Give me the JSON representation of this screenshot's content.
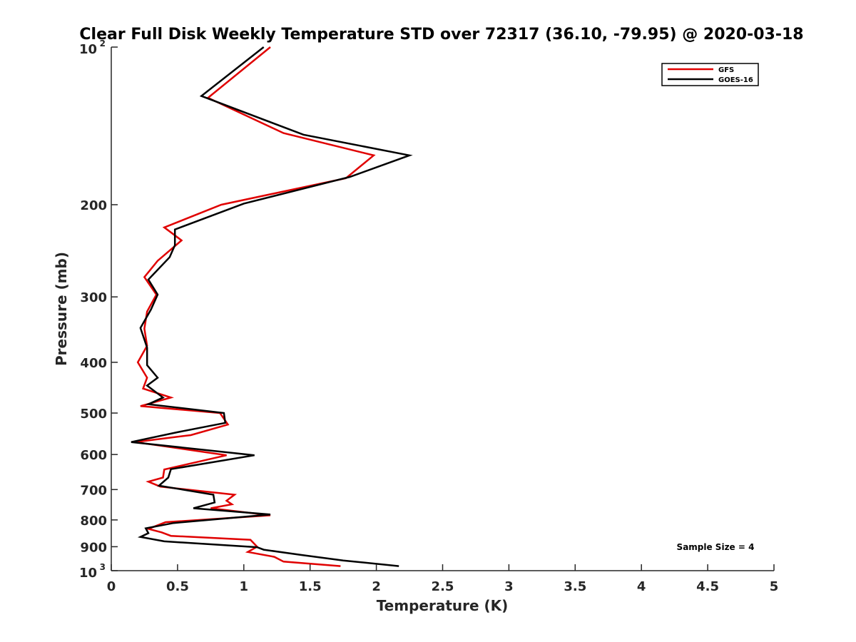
{
  "chart_data": {
    "type": "line",
    "title": "Clear Full Disk Weekly Temperature STD over 72317 (36.10, -79.95) @ 2020-03-18",
    "xlabel": "Temperature (K)",
    "ylabel": "Pressure (mb)",
    "xlim": [
      0,
      5
    ],
    "ylim": [
      100,
      1000
    ],
    "y_scale": "log",
    "y_reversed": true,
    "grid": false,
    "x_ticks": [
      "0",
      "0.5",
      "1",
      "1.5",
      "2",
      "2.5",
      "3",
      "3.5",
      "4",
      "4.5",
      "5"
    ],
    "y_ticks": [
      {
        "value": 100,
        "base": "10",
        "exp": "2"
      },
      {
        "value": 200,
        "label": "200"
      },
      {
        "value": 300,
        "label": "300"
      },
      {
        "value": 400,
        "label": "400"
      },
      {
        "value": 500,
        "label": "500"
      },
      {
        "value": 600,
        "label": "600"
      },
      {
        "value": 700,
        "label": "700"
      },
      {
        "value": 800,
        "label": "800"
      },
      {
        "value": 900,
        "label": "900"
      },
      {
        "value": 1000,
        "base": "10",
        "exp": "3"
      }
    ],
    "legend_position": "top-right",
    "annotation": "Sample Size = 4",
    "series": [
      {
        "name": "GFS",
        "color": "#e00000",
        "points": [
          [
            1.2,
            100
          ],
          [
            0.73,
            125
          ],
          [
            1.3,
            146
          ],
          [
            1.98,
            161
          ],
          [
            1.77,
            178
          ],
          [
            0.83,
            200
          ],
          [
            0.4,
            221
          ],
          [
            0.53,
            234
          ],
          [
            0.35,
            256
          ],
          [
            0.25,
            275
          ],
          [
            0.34,
            297
          ],
          [
            0.27,
            320
          ],
          [
            0.25,
            345
          ],
          [
            0.27,
            372
          ],
          [
            0.2,
            400
          ],
          [
            0.27,
            428
          ],
          [
            0.24,
            449
          ],
          [
            0.45,
            467
          ],
          [
            0.22,
            485
          ],
          [
            0.82,
            500
          ],
          [
            0.88,
            526
          ],
          [
            0.6,
            551
          ],
          [
            0.18,
            568
          ],
          [
            0.87,
            602
          ],
          [
            0.4,
            641
          ],
          [
            0.39,
            664
          ],
          [
            0.28,
            676
          ],
          [
            0.37,
            691
          ],
          [
            0.93,
            716
          ],
          [
            0.87,
            735
          ],
          [
            0.91,
            747
          ],
          [
            0.75,
            760
          ],
          [
            1.2,
            784
          ],
          [
            0.41,
            808
          ],
          [
            0.28,
            832
          ],
          [
            0.38,
            845
          ],
          [
            0.45,
            858
          ],
          [
            1.05,
            873
          ],
          [
            1.1,
            900
          ],
          [
            1.03,
            921
          ],
          [
            1.23,
            941
          ],
          [
            1.3,
            961
          ],
          [
            1.73,
            980
          ]
        ]
      },
      {
        "name": "GOES-16",
        "color": "#000000",
        "points": [
          [
            1.15,
            100
          ],
          [
            0.68,
            124
          ],
          [
            1.45,
            147
          ],
          [
            2.25,
            161
          ],
          [
            1.8,
            177
          ],
          [
            1.0,
            199
          ],
          [
            0.48,
            223
          ],
          [
            0.48,
            239
          ],
          [
            0.44,
            252
          ],
          [
            0.28,
            278
          ],
          [
            0.35,
            297
          ],
          [
            0.3,
            317
          ],
          [
            0.22,
            344
          ],
          [
            0.27,
            375
          ],
          [
            0.27,
            405
          ],
          [
            0.35,
            428
          ],
          [
            0.27,
            443
          ],
          [
            0.39,
            467
          ],
          [
            0.28,
            481
          ],
          [
            0.85,
            500
          ],
          [
            0.86,
            522
          ],
          [
            0.5,
            544
          ],
          [
            0.15,
            568
          ],
          [
            1.08,
            602
          ],
          [
            0.45,
            640
          ],
          [
            0.43,
            664
          ],
          [
            0.36,
            688
          ],
          [
            0.77,
            716
          ],
          [
            0.78,
            741
          ],
          [
            0.62,
            760
          ],
          [
            1.2,
            781
          ],
          [
            0.47,
            811
          ],
          [
            0.26,
            830
          ],
          [
            0.28,
            848
          ],
          [
            0.22,
            862
          ],
          [
            0.4,
            879
          ],
          [
            1.1,
            902
          ],
          [
            1.15,
            912
          ],
          [
            1.43,
            933
          ],
          [
            1.75,
            956
          ],
          [
            2.17,
            980
          ]
        ]
      }
    ]
  }
}
